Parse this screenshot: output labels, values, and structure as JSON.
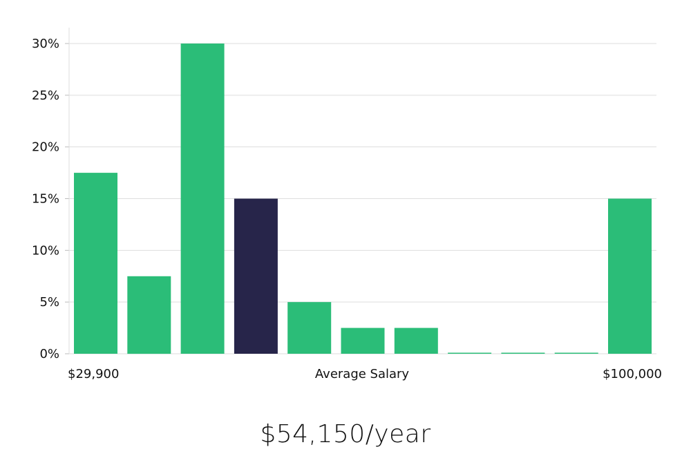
{
  "chart_data": {
    "type": "bar",
    "title": "",
    "xlabel": "Average Salary",
    "ylabel": "",
    "x_range_labels": {
      "min": "$29,900",
      "max": "$100,000"
    },
    "values": [
      17.5,
      7.5,
      30,
      15,
      5,
      2.5,
      2.5,
      0,
      0,
      0,
      15
    ],
    "highlight_index": 3,
    "ylim": [
      0,
      30
    ],
    "yticks": [
      0,
      5,
      10,
      15,
      20,
      25,
      30
    ],
    "ytick_suffix": "%",
    "grid": true,
    "colors": {
      "bar": "#2bbd78",
      "highlight": "#27254a",
      "grid": "#dddddd",
      "axis": "#dddddd"
    }
  },
  "summary": {
    "average_salary": "$54,150/year"
  }
}
